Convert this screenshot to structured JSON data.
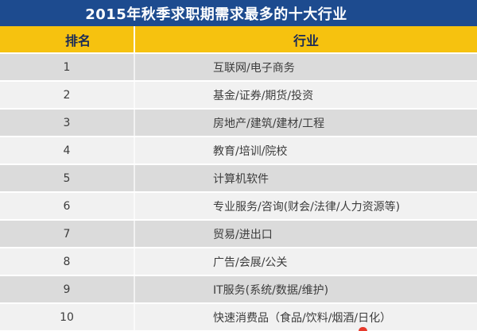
{
  "title": "2015年秋季求职期需求最多的十大行业",
  "table": {
    "columns": [
      "排名",
      "行业"
    ],
    "rows": [
      {
        "rank": "1",
        "industry": "互联网/电子商务"
      },
      {
        "rank": "2",
        "industry": "基金/证券/期货/投资"
      },
      {
        "rank": "3",
        "industry": "房地产/建筑/建材/工程"
      },
      {
        "rank": "4",
        "industry": "教育/培训/院校"
      },
      {
        "rank": "5",
        "industry": "计算机软件"
      },
      {
        "rank": "6",
        "industry": "专业服务/咨询(财会/法律/人力资源等)"
      },
      {
        "rank": "7",
        "industry": "贸易/进出口"
      },
      {
        "rank": "8",
        "industry": "广告/会展/公关"
      },
      {
        "rank": "9",
        "industry": "IT服务(系统/数据/维护)"
      },
      {
        "rank": "10",
        "industry": "快速消费品（食品/饮料/烟酒/日化）"
      }
    ]
  },
  "chart_data": {
    "type": "table",
    "title": "2015年秋季求职期需求最多的十大行业",
    "columns": [
      "排名",
      "行业"
    ],
    "rows": [
      [
        "1",
        "互联网/电子商务"
      ],
      [
        "2",
        "基金/证券/期货/投资"
      ],
      [
        "3",
        "房地产/建筑/建材/工程"
      ],
      [
        "4",
        "教育/培训/院校"
      ],
      [
        "5",
        "计算机软件"
      ],
      [
        "6",
        "专业服务/咨询(财会/法律/人力资源等)"
      ],
      [
        "7",
        "贸易/进出口"
      ],
      [
        "8",
        "广告/会展/公关"
      ],
      [
        "9",
        "IT服务(系统/数据/维护)"
      ],
      [
        "10",
        "快速消费品（食品/饮料/烟酒/日化）"
      ]
    ],
    "layout_hints": {
      "striped_rows": true,
      "header_band": "gold",
      "title_band": "navy"
    }
  },
  "colors": {
    "title_bar_bg": "#1d4b8f",
    "title_text": "#ffffff",
    "header_bg": "#f6c20f",
    "header_text": "#1a2a57",
    "row_dark_bg": "#dbdbdb",
    "row_light_bg": "#f1f1f1",
    "row_text": "#3c3c3c",
    "separator": "#ffffff",
    "red_fragment": "#e6392b"
  }
}
